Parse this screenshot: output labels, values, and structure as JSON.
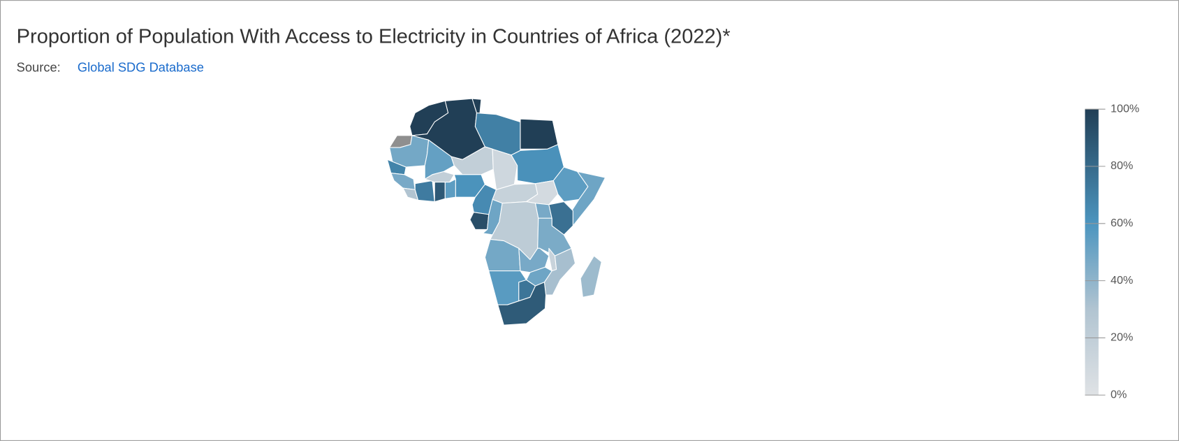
{
  "chart_data": {
    "type": "choropleth",
    "title": "Proportion of Population With Access to Electricity in Countries of Africa (2022)*",
    "source_label": "Source:",
    "source_link": "Global SDG Database",
    "values": [
      100,
      null,
      100,
      100,
      70,
      100,
      48,
      53,
      19,
      11,
      62,
      68,
      47,
      30,
      72,
      19,
      88,
      55,
      61,
      65,
      16,
      8,
      55,
      50,
      93,
      50,
      22,
      47,
      77,
      46,
      48,
      47,
      15,
      33,
      50,
      56,
      75,
      87,
      36
    ],
    "ylim": [
      0,
      100
    ],
    "yticks": [
      {
        "value": 0,
        "label": "0%"
      },
      {
        "value": 20,
        "label": "20%"
      },
      {
        "value": 40,
        "label": "40%"
      },
      {
        "value": 60,
        "label": "60%"
      },
      {
        "value": 80,
        "label": "80%"
      },
      {
        "value": 100,
        "label": "100%"
      }
    ],
    "color_scale": [
      {
        "value": 0,
        "color": "#dfe2e5"
      },
      {
        "value": 30,
        "color": "#b1c4d1"
      },
      {
        "value": 60,
        "color": "#4c95bf"
      },
      {
        "value": 100,
        "color": "#213f56"
      }
    ],
    "no_data_color": "#8f8f8f"
  }
}
